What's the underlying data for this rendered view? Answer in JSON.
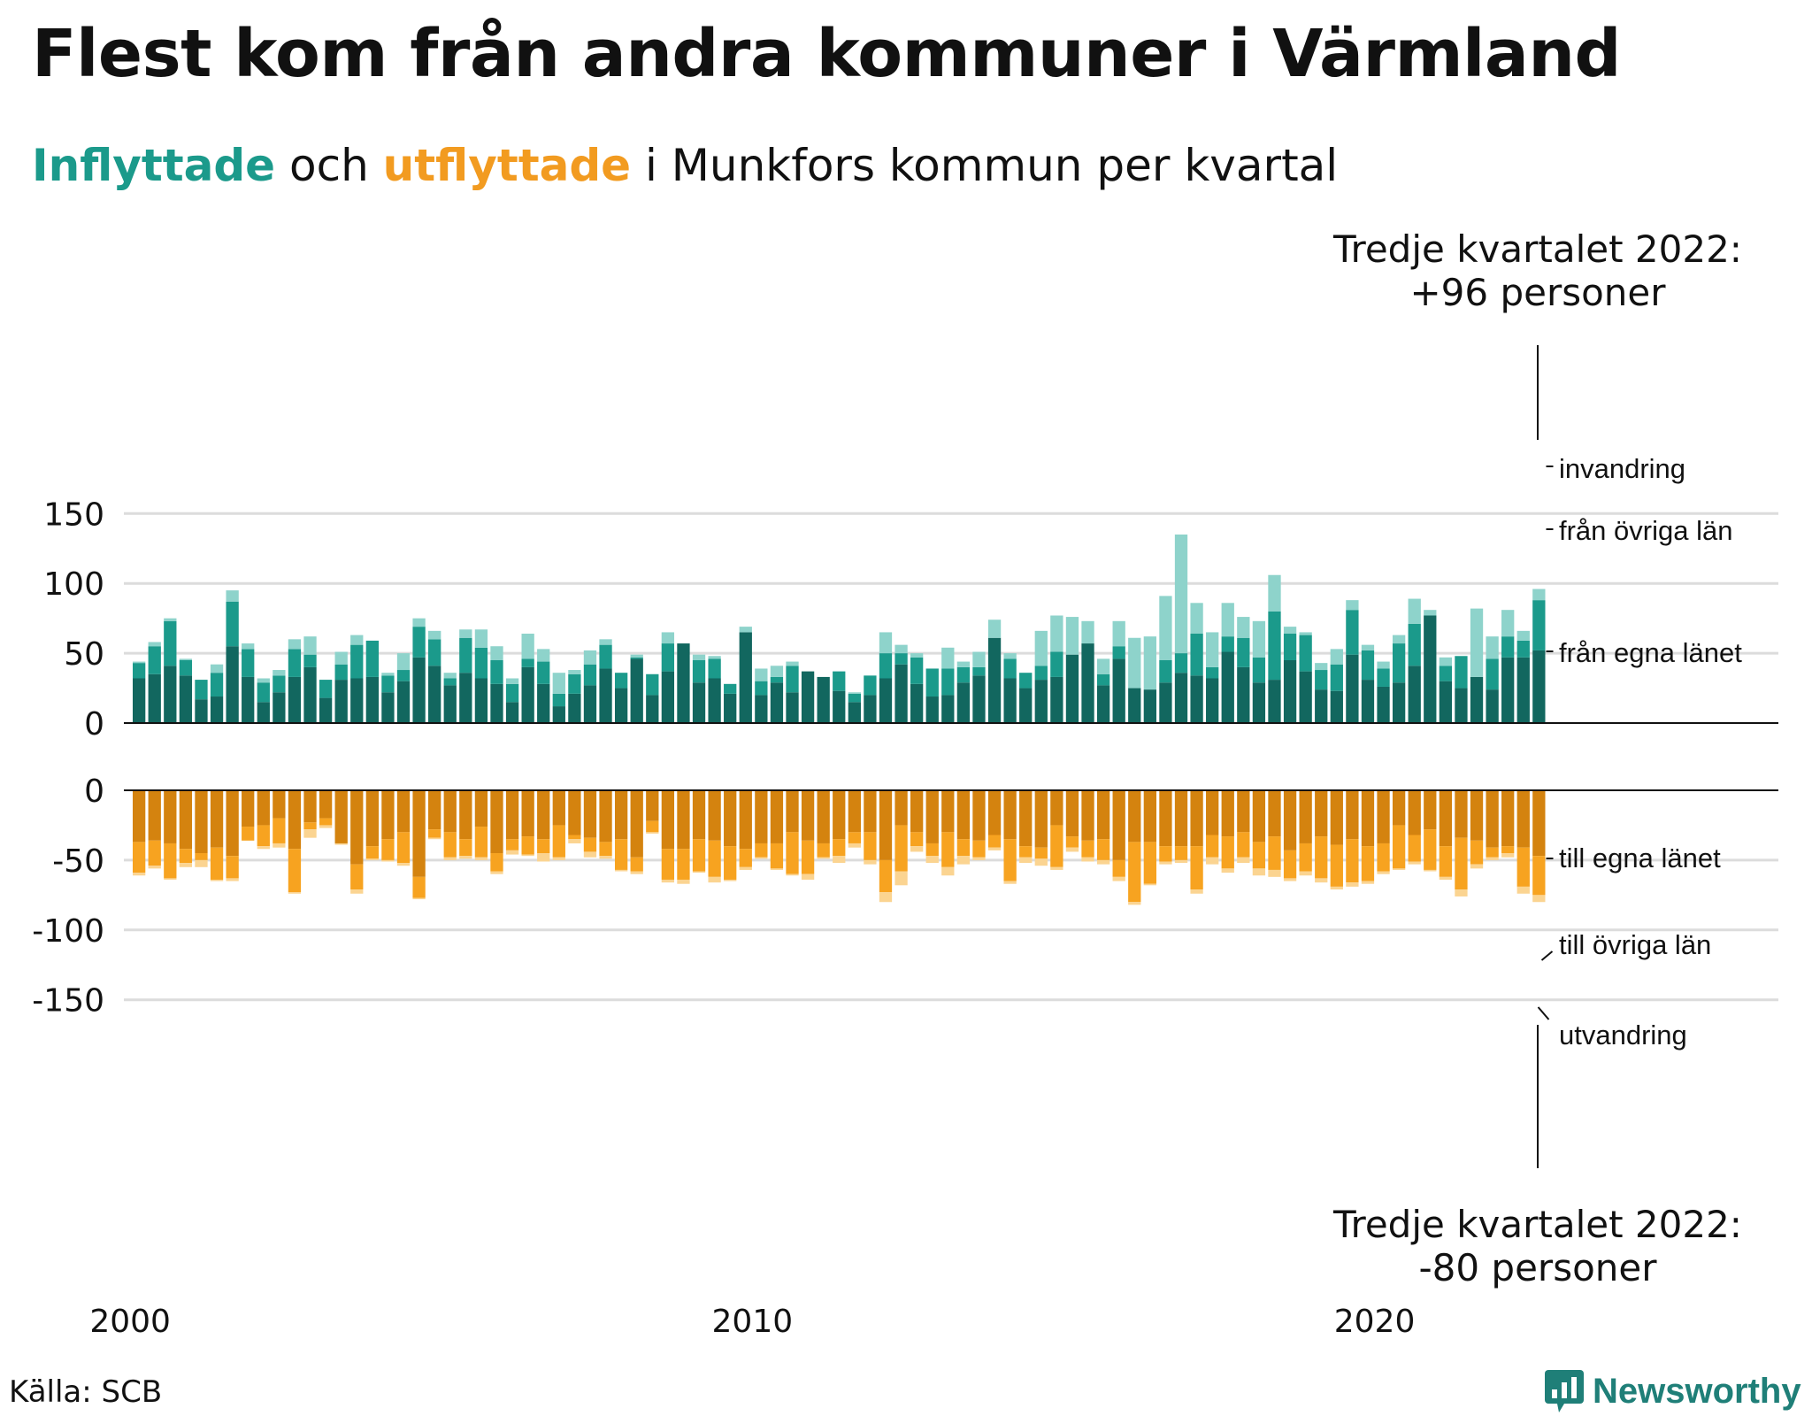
{
  "title": "Flest kom från andra kommuner i Värmland",
  "subtitle": {
    "part1": "Inflyttade",
    "part2": " och ",
    "part3": "utflyttade",
    "part4": " i Munkfors kommun per kvartal"
  },
  "source": "Källa: SCB",
  "brand": "Newsworthy",
  "colors": {
    "in_egna": "#12675f",
    "in_ovriga": "#1b9a8b",
    "in_invandring": "#8ed3cb",
    "out_egna": "#d4830f",
    "out_ovriga": "#f7a320",
    "out_utvandring": "#fbd491"
  },
  "chart_data": {
    "type": "bar",
    "stacked": true,
    "start": "2000Q1",
    "x_ticks": [
      "2000",
      "2010",
      "2020"
    ],
    "top_panel": {
      "y_ticks": [
        "150",
        "100",
        "50",
        "0"
      ],
      "ylim": [
        0,
        150
      ],
      "series": [
        {
          "name": "från egna länet",
          "values": [
            32,
            35,
            41,
            34,
            17,
            19,
            55,
            33,
            15,
            22,
            33,
            40,
            18,
            31,
            32,
            33,
            22,
            30,
            47,
            41,
            27,
            36,
            32,
            28,
            15,
            40,
            28,
            12,
            21,
            27,
            39,
            25,
            46,
            20,
            37,
            57,
            29,
            32,
            21,
            65,
            20,
            29,
            22,
            37,
            33,
            23,
            15,
            20,
            32,
            42,
            28,
            19,
            20,
            29,
            34,
            61,
            32,
            25,
            31,
            33,
            49,
            57,
            27,
            46,
            25,
            24,
            29,
            36,
            34,
            32,
            51,
            40,
            29,
            31,
            45,
            37,
            24,
            23,
            49,
            31,
            26,
            29,
            41,
            77,
            30,
            25,
            33,
            24,
            47,
            47,
            52
          ]
        },
        {
          "name": "från övriga län",
          "values": [
            11,
            20,
            32,
            11,
            14,
            17,
            32,
            20,
            14,
            12,
            20,
            9,
            13,
            11,
            24,
            26,
            12,
            8,
            22,
            19,
            5,
            25,
            22,
            17,
            13,
            6,
            16,
            9,
            14,
            15,
            17,
            11,
            1,
            15,
            20,
            0,
            16,
            14,
            7,
            0,
            10,
            4,
            19,
            0,
            0,
            14,
            6,
            14,
            18,
            8,
            19,
            20,
            19,
            11,
            6,
            0,
            14,
            11,
            10,
            18,
            0,
            0,
            8,
            9,
            0,
            0,
            16,
            14,
            30,
            8,
            11,
            21,
            18,
            49,
            19,
            26,
            14,
            19,
            32,
            21,
            13,
            28,
            30,
            0,
            11,
            23,
            0,
            22,
            15,
            12,
            36
          ]
        },
        {
          "name": "invandring",
          "values": [
            1,
            3,
            2,
            1,
            0,
            6,
            8,
            4,
            3,
            4,
            7,
            13,
            0,
            9,
            7,
            0,
            2,
            12,
            6,
            6,
            4,
            6,
            13,
            10,
            4,
            18,
            9,
            15,
            3,
            10,
            4,
            0,
            2,
            0,
            8,
            0,
            4,
            2,
            0,
            4,
            9,
            8,
            3,
            0,
            0,
            0,
            1,
            0,
            15,
            6,
            3,
            0,
            15,
            4,
            11,
            13,
            4,
            0,
            25,
            26,
            27,
            16,
            11,
            18,
            36,
            38,
            46,
            85,
            22,
            25,
            24,
            15,
            26,
            26,
            5,
            2,
            5,
            11,
            7,
            4,
            5,
            6,
            18,
            4,
            6,
            0,
            49,
            16,
            19,
            7,
            8
          ]
        }
      ]
    },
    "bottom_panel": {
      "y_ticks": [
        "0",
        "-50",
        "-100",
        "-150"
      ],
      "ylim": [
        -150,
        0
      ],
      "series": [
        {
          "name": "till egna länet",
          "values": [
            -37,
            -36,
            -38,
            -42,
            -45,
            -41,
            -47,
            -26,
            -25,
            -20,
            -42,
            -23,
            -20,
            -38,
            -53,
            -40,
            -35,
            -30,
            -62,
            -28,
            -30,
            -35,
            -26,
            -45,
            -35,
            -33,
            -35,
            -25,
            -32,
            -34,
            -37,
            -35,
            -48,
            -22,
            -42,
            -42,
            -35,
            -36,
            -40,
            -42,
            -38,
            -38,
            -30,
            -36,
            -38,
            -35,
            -30,
            -30,
            -50,
            -25,
            -30,
            -38,
            -30,
            -35,
            -36,
            -32,
            -35,
            -40,
            -41,
            -25,
            -33,
            -36,
            -35,
            -50,
            -37,
            -37,
            -40,
            -40,
            -40,
            -32,
            -33,
            -30,
            -37,
            -33,
            -43,
            -38,
            -33,
            -39,
            -35,
            -40,
            -38,
            -25,
            -32,
            -28,
            -40,
            -34,
            -36,
            -41,
            -40,
            -41,
            -47
          ]
        },
        {
          "name": "till övriga län",
          "values": [
            -22,
            -18,
            -25,
            -10,
            -5,
            -23,
            -16,
            -10,
            -15,
            -18,
            -31,
            -5,
            -5,
            0,
            -18,
            -9,
            -15,
            -22,
            -15,
            -6,
            -18,
            -12,
            -22,
            -13,
            -8,
            -13,
            -10,
            -23,
            -3,
            -10,
            -10,
            -22,
            -10,
            -8,
            -22,
            -22,
            -23,
            -26,
            -24,
            -13,
            -10,
            -18,
            -30,
            -24,
            -10,
            -12,
            -8,
            -20,
            -23,
            -33,
            -10,
            -9,
            -25,
            -12,
            -12,
            -9,
            -30,
            -8,
            -8,
            -30,
            -8,
            -12,
            -15,
            -12,
            -43,
            -30,
            -11,
            -10,
            -31,
            -16,
            -23,
            -18,
            -19,
            -24,
            -20,
            -20,
            -30,
            -30,
            -31,
            -25,
            -20,
            -31,
            -19,
            -29,
            -22,
            -37,
            -17,
            -7,
            -5,
            -28,
            -28
          ]
        },
        {
          "name": "utvandring",
          "values": [
            -2,
            -2,
            -1,
            -3,
            -5,
            -1,
            -2,
            0,
            -2,
            -3,
            -1,
            -6,
            -2,
            -1,
            -3,
            -1,
            -1,
            -2,
            -1,
            -1,
            -2,
            -2,
            -2,
            -2,
            -3,
            -1,
            -6,
            -2,
            -3,
            -4,
            -2,
            -1,
            -2,
            -1,
            -2,
            -3,
            -1,
            -4,
            -1,
            -2,
            -1,
            -1,
            -1,
            -4,
            -1,
            -5,
            -3,
            -3,
            -7,
            -10,
            -4,
            -5,
            -6,
            -6,
            -2,
            -2,
            -2,
            -4,
            -5,
            -2,
            -3,
            -3,
            -3,
            -3,
            -2,
            -1,
            -2,
            -2,
            -3,
            -5,
            -3,
            -4,
            -5,
            -5,
            -2,
            -3,
            -3,
            -2,
            -3,
            -2,
            -2,
            -1,
            -2,
            -1,
            -2,
            -5,
            -3,
            -2,
            -3,
            -5,
            -5
          ]
        }
      ]
    },
    "annotations": {
      "top_title": "Tredje kvartalet 2022:",
      "top_value": "+96 personer",
      "bottom_title": "Tredje kvartalet 2022:",
      "bottom_value": "-80 personer"
    }
  }
}
